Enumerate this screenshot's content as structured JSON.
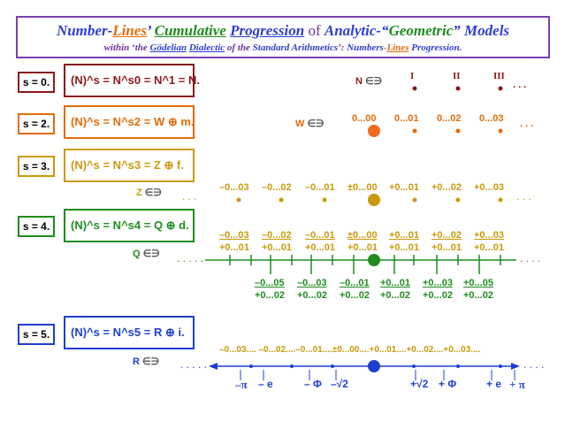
{
  "title": {
    "line1": [
      "Number-",
      "Lines",
      "’ ",
      "Cumulative",
      " ",
      "Progression",
      " of ",
      "Analytic",
      "-“",
      "Geometric",
      "” ",
      "Models"
    ],
    "line2": [
      "within ‘the ",
      "Gödelian",
      " ",
      "Dialectic",
      " of the ",
      "Standard Arithmetics",
      "’:  ",
      "Numbers",
      "-",
      "Lines",
      "  ",
      "Progression",
      "."
    ]
  },
  "rows": [
    {
      "s_label": "s = 0.",
      "formula": "(N)^s = N^s0 = N^1 = N.",
      "set": "N",
      "relation": "∈∋",
      "color": "#8b1a1a"
    },
    {
      "s_label": "s = 2.",
      "formula": "(N)^s = N^s2 = W ⊕ m.",
      "set": "W",
      "relation": "∈∋",
      "color": "#e36c09"
    },
    {
      "s_label": "s = 3.",
      "formula": "(N)^s = N^s3 = Z ⊕ f.",
      "set": "Z",
      "relation": "∈∋",
      "color": "#c99a0c"
    },
    {
      "s_label": "s = 4.",
      "formula": "(N)^s = N^s4 = Q ⊕ d.",
      "set": "Q",
      "relation": "∈∋",
      "color": "#1f8c1f"
    },
    {
      "s_label": "s = 5.",
      "formula": "(N)^s = N^s5 = R ⊕ i.",
      "set": "R",
      "relation": "∈∋",
      "color": "#1f3fd0"
    }
  ],
  "n_line": {
    "labels": [
      "I",
      "II",
      "III"
    ],
    "dots": ". . ."
  },
  "w_line": {
    "labels": [
      "0...00",
      "0...01",
      "0...02",
      "0...03"
    ],
    "dots": ". . ."
  },
  "z_line": {
    "labels": [
      "–0...03",
      "–0...02",
      "–0...01",
      "±0...00",
      "+0...01",
      "+0...02",
      "+0...03"
    ]
  },
  "q_line": {
    "top_num": [
      "–0...03",
      "–0...02",
      "–0...01",
      "±0...00",
      "+0...01",
      "+0...02",
      "+0...03"
    ],
    "top_den": [
      "+0...01",
      "+0...01",
      "+0...01",
      "+0...01",
      "+0...01",
      "+0...01",
      "+0...01"
    ],
    "bot_num": [
      "–0...05",
      "–0...03",
      "–0...01",
      "+0...01",
      "+0...03",
      "+0...05"
    ],
    "bot_den": [
      "+0...02",
      "+0...02",
      "+0...02",
      "+0...02",
      "+0...02",
      "+0...02"
    ]
  },
  "r_line": {
    "top": "–0...03.... –0...02....–0...01....±0...00....+0...01....+0...02....+0...03....",
    "marks": [
      "–π",
      "– e",
      "– Φ",
      "–√2",
      "+√2",
      "+ Φ",
      "+ e",
      "+ π"
    ]
  },
  "colors": {
    "purple": "#7030a0",
    "blue": "#2e3ed0",
    "orange": "#e36c09",
    "green": "#1f8c1f",
    "yellow": "#c99a0c",
    "brown": "#8b1a1a"
  }
}
